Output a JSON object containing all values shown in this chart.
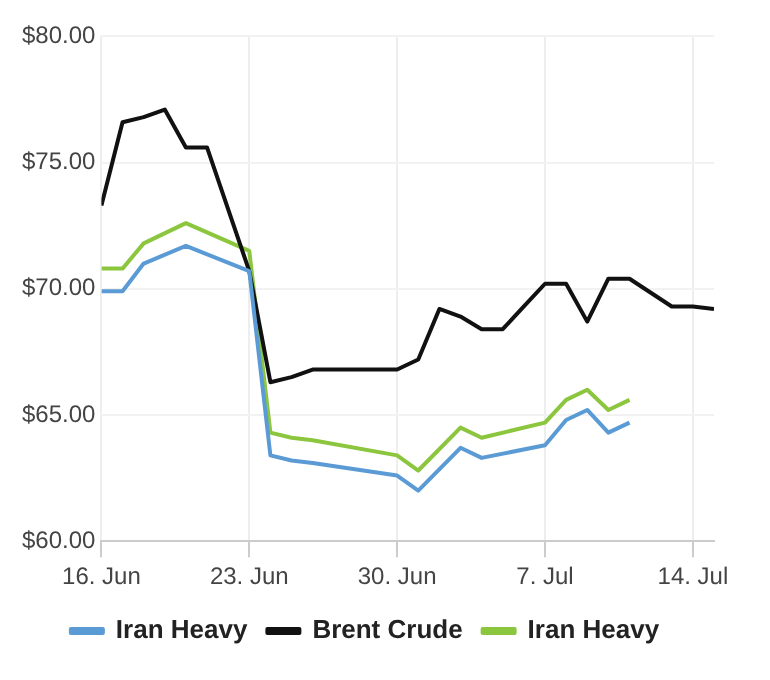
{
  "chart_data": {
    "type": "line",
    "xlim": [
      "--06-16",
      "--07-15"
    ],
    "xticks": [
      {
        "value": "--06-16",
        "label": "16. Jun"
      },
      {
        "value": "--06-23",
        "label": "23. Jun"
      },
      {
        "value": "--06-30",
        "label": "30. Jun"
      },
      {
        "value": "--07-07",
        "label": "7. Jul"
      },
      {
        "value": "--07-14",
        "label": "14. Jul"
      }
    ],
    "ylim": [
      60,
      80
    ],
    "yticks": [
      {
        "value": 60,
        "label": "$60.00"
      },
      {
        "value": 65,
        "label": "$65.00"
      },
      {
        "value": 70,
        "label": "$70.00"
      },
      {
        "value": 75,
        "label": "$75.00"
      },
      {
        "value": 80,
        "label": "$80.00"
      }
    ],
    "grid": true,
    "legend": "bottom",
    "marker": "none",
    "line_style": "solid",
    "series": [
      {
        "name": "Iran Heavy",
        "color": "#5b9bd5",
        "x": [
          "--06-16",
          "--06-17",
          "--06-18",
          "--06-20",
          "--06-23",
          "--06-24",
          "--06-25",
          "--06-26",
          "--06-30",
          "--07-01",
          "--07-03",
          "--07-04",
          "--07-07",
          "--07-08",
          "--07-09",
          "--07-10",
          "--07-11"
        ],
        "values": [
          69.9,
          69.9,
          71.0,
          71.7,
          70.7,
          63.4,
          63.2,
          63.1,
          62.6,
          62.0,
          63.7,
          63.3,
          63.8,
          64.8,
          65.2,
          64.3,
          64.7
        ]
      },
      {
        "name": "Brent Crude",
        "color": "#111111",
        "x": [
          "--06-16",
          "--06-17",
          "--06-18",
          "--06-19",
          "--06-20",
          "--06-21",
          "--06-23",
          "--06-24",
          "--06-25",
          "--06-26",
          "--06-27",
          "--06-30",
          "--07-01",
          "--07-02",
          "--07-03",
          "--07-04",
          "--07-05",
          "--07-06",
          "--07-07",
          "--07-08",
          "--07-09",
          "--07-10",
          "--07-11",
          "--07-13",
          "--07-14",
          "--07-15"
        ],
        "values": [
          73.3,
          76.6,
          76.8,
          77.1,
          75.6,
          75.6,
          70.7,
          66.3,
          66.5,
          66.8,
          66.8,
          66.8,
          67.2,
          69.2,
          68.9,
          68.4,
          68.4,
          69.3,
          70.2,
          70.2,
          68.7,
          70.4,
          70.4,
          69.3,
          69.3,
          69.2
        ]
      },
      {
        "name": "Iran Heavy",
        "color": "#8cc63f",
        "x": [
          "--06-16",
          "--06-17",
          "--06-18",
          "--06-20",
          "--06-23",
          "--06-24",
          "--06-25",
          "--06-26",
          "--06-30",
          "--07-01",
          "--07-03",
          "--07-04",
          "--07-07",
          "--07-08",
          "--07-09",
          "--07-10",
          "--07-11"
        ],
        "values": [
          70.8,
          70.8,
          71.8,
          72.6,
          71.5,
          64.3,
          64.1,
          64.0,
          63.4,
          62.8,
          64.5,
          64.1,
          64.7,
          65.6,
          66.0,
          65.2,
          65.6
        ]
      }
    ]
  }
}
